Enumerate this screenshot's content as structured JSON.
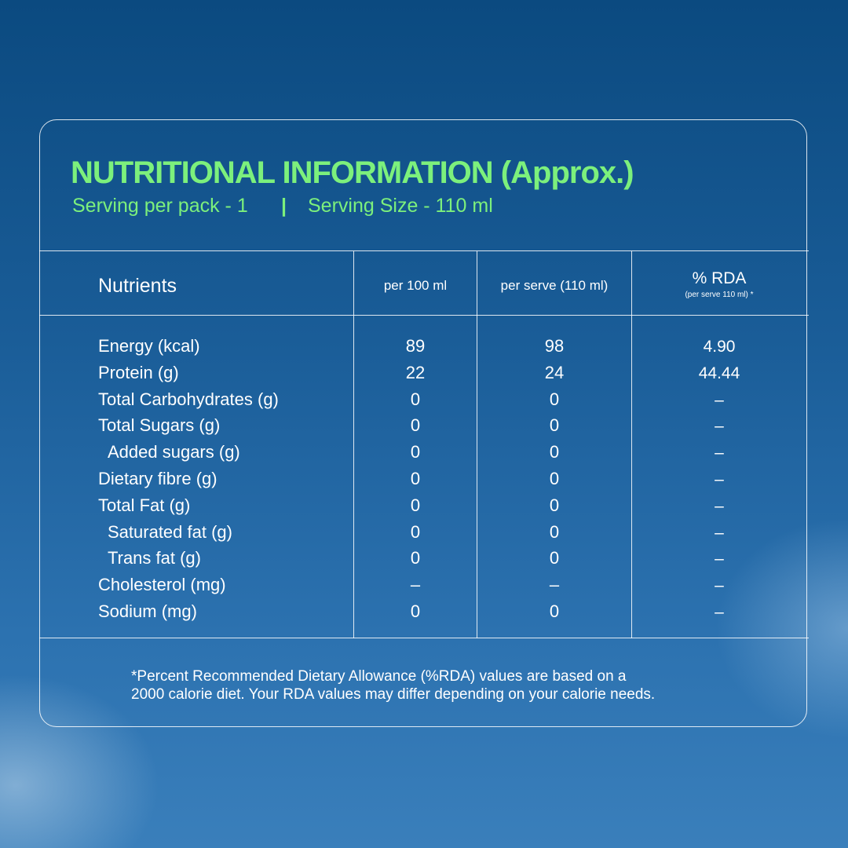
{
  "header": {
    "title": "NUTRITIONAL INFORMATION (Approx.)",
    "subtitle": [
      "Serving per pack - 1",
      "|",
      "Serving Size - 110 ml"
    ]
  },
  "table": {
    "columns": [
      "Nutrients",
      "per 100 ml",
      "per serve (110 ml)",
      "% RDA"
    ],
    "rda_note": "(per serve 110 ml) *",
    "rows": [
      {
        "nutrient": "Energy (kcal)",
        "per_100ml": "89",
        "per_serve": "98",
        "rda": "4.90"
      },
      {
        "nutrient": "Protein (g)",
        "per_100ml": "22",
        "per_serve": "24",
        "rda": "44.44"
      },
      {
        "nutrient": "Total Carbohydrates (g)",
        "per_100ml": "0",
        "per_serve": "0",
        "rda": "–"
      },
      {
        "nutrient": "Total Sugars (g)",
        "per_100ml": "0",
        "per_serve": "0",
        "rda": "–"
      },
      {
        "nutrient": "Added sugars (g)",
        "per_100ml": "0",
        "per_serve": "0",
        "rda": "–",
        "indent": true
      },
      {
        "nutrient": "Dietary fibre (g)",
        "per_100ml": "0",
        "per_serve": "0",
        "rda": "–"
      },
      {
        "nutrient": "Total Fat (g)",
        "per_100ml": "0",
        "per_serve": "0",
        "rda": "–"
      },
      {
        "nutrient": "Saturated fat (g)",
        "per_100ml": "0",
        "per_serve": "0",
        "rda": "–",
        "indent": true
      },
      {
        "nutrient": "Trans fat (g)",
        "per_100ml": "0",
        "per_serve": "0",
        "rda": "–",
        "indent": true
      },
      {
        "nutrient": "Cholesterol (mg)",
        "per_100ml": "–",
        "per_serve": "–",
        "rda": "–"
      },
      {
        "nutrient": "Sodium (mg)",
        "per_100ml": "0",
        "per_serve": "0",
        "rda": "–"
      }
    ]
  },
  "footnote": [
    "*Percent Recommended Dietary Allowance (%RDA) values are based on a",
    "2000 calorie diet. Your RDA values may differ depending on your calorie needs."
  ]
}
